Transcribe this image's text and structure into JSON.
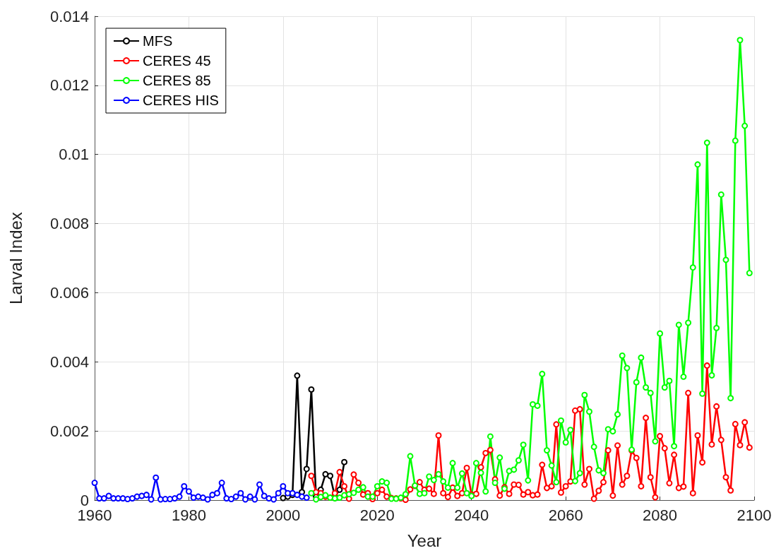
{
  "chart_data": {
    "type": "line",
    "xlabel": "Year",
    "ylabel": "Larval Index",
    "xlim": [
      1960,
      2100
    ],
    "xticks": [
      1960,
      1980,
      2000,
      2020,
      2040,
      2060,
      2080,
      2100
    ],
    "ylim": [
      0,
      0.014
    ],
    "yticks": [
      0,
      0.002,
      0.004,
      0.006,
      0.008,
      0.01,
      0.012,
      0.014
    ],
    "grid": true,
    "legend": "top left",
    "marker": "circle",
    "line_style": "solid",
    "series": [
      {
        "name": "MFS",
        "color": "#000000",
        "x": [
          2000,
          2001,
          2002,
          2003,
          2004,
          2005,
          2006,
          2007,
          2008,
          2009,
          2010,
          2011,
          2012,
          2013
        ],
        "values": [
          6e-05,
          0.0001,
          0.00015,
          0.0036,
          0.00023,
          0.0009,
          0.0032,
          0.0001,
          0.0003,
          0.00075,
          0.0007,
          0.0001,
          0.0003,
          0.0011
        ]
      },
      {
        "name": "CERES 45",
        "color": "#ff0000",
        "x": [
          2006,
          2007,
          2008,
          2009,
          2010,
          2011,
          2012,
          2013,
          2014,
          2015,
          2016,
          2017,
          2018,
          2019,
          2020,
          2021,
          2022,
          2023,
          2024,
          2025,
          2026,
          2027,
          2028,
          2029,
          2030,
          2031,
          2032,
          2033,
          2034,
          2035,
          2036,
          2037,
          2038,
          2039,
          2040,
          2041,
          2042,
          2043,
          2044,
          2045,
          2046,
          2047,
          2048,
          2049,
          2050,
          2051,
          2052,
          2053,
          2054,
          2055,
          2056,
          2057,
          2058,
          2059,
          2060,
          2061,
          2062,
          2063,
          2064,
          2065,
          2066,
          2067,
          2068,
          2069,
          2070,
          2071,
          2072,
          2073,
          2074,
          2075,
          2076,
          2077,
          2078,
          2079,
          2080,
          2081,
          2082,
          2083,
          2084,
          2085,
          2086,
          2087,
          2088,
          2089,
          2090,
          2091,
          2092,
          2093,
          2094,
          2095,
          2096,
          2097,
          2098,
          2099
        ],
        "values": [
          0.0007,
          0.00023,
          0.0002,
          0.0001,
          7e-05,
          0.0002,
          0.00081,
          0.0004,
          4e-05,
          0.00074,
          0.0005,
          0.00016,
          0.0002,
          3e-05,
          0.0002,
          0.0003,
          0.0001,
          6e-05,
          5e-05,
          5e-05,
          1e-05,
          0.00031,
          0.00041,
          0.00052,
          0.0003,
          0.00033,
          0.00018,
          0.00187,
          0.0002,
          9e-05,
          0.00036,
          0.00012,
          0.0002,
          0.00093,
          0.00016,
          0.00018,
          0.00095,
          0.00136,
          0.00145,
          0.0006,
          0.00013,
          0.00037,
          0.00018,
          0.00045,
          0.00044,
          0.00016,
          0.00023,
          0.00014,
          0.00016,
          0.00102,
          0.00035,
          0.0004,
          0.00219,
          0.00022,
          0.0004,
          0.00054,
          0.00259,
          0.00263,
          0.00045,
          0.0009,
          4e-05,
          0.00027,
          0.00052,
          0.00144,
          0.00013,
          0.00158,
          0.00045,
          0.0007,
          0.00143,
          0.00122,
          0.0004,
          0.00238,
          0.00066,
          8e-05,
          0.00185,
          0.0015,
          0.00049,
          0.00131,
          0.00035,
          0.00039,
          0.0031,
          0.0002,
          0.00187,
          0.00109,
          0.00389,
          0.00161,
          0.00271,
          0.00174,
          0.00066,
          0.00028,
          0.0022,
          0.00159,
          0.00225,
          0.00152
        ]
      },
      {
        "name": "CERES 85",
        "color": "#00ff00",
        "x": [
          2006,
          2007,
          2008,
          2009,
          2010,
          2011,
          2012,
          2013,
          2014,
          2015,
          2016,
          2017,
          2018,
          2019,
          2020,
          2021,
          2022,
          2023,
          2024,
          2025,
          2026,
          2027,
          2028,
          2029,
          2030,
          2031,
          2032,
          2033,
          2034,
          2035,
          2036,
          2037,
          2038,
          2039,
          2040,
          2041,
          2042,
          2043,
          2044,
          2045,
          2046,
          2047,
          2048,
          2049,
          2050,
          2051,
          2052,
          2053,
          2054,
          2055,
          2056,
          2057,
          2058,
          2059,
          2060,
          2061,
          2062,
          2063,
          2064,
          2065,
          2066,
          2067,
          2068,
          2069,
          2070,
          2071,
          2072,
          2073,
          2074,
          2075,
          2076,
          2077,
          2078,
          2079,
          2080,
          2081,
          2082,
          2083,
          2084,
          2085,
          2086,
          2087,
          2088,
          2089,
          2090,
          2091,
          2092,
          2093,
          2094,
          2095,
          2096,
          2097,
          2098,
          2099
        ],
        "values": [
          0.0002,
          2e-05,
          9e-05,
          0.00014,
          7e-05,
          5e-05,
          7e-05,
          0.00014,
          0.00017,
          0.00021,
          0.0003,
          0.00037,
          0.0001,
          0.0001,
          0.0004,
          0.00054,
          0.0005,
          4e-05,
          4e-05,
          7e-05,
          0.00017,
          0.00127,
          0.00042,
          0.00018,
          0.0002,
          0.00068,
          0.00058,
          0.00075,
          0.00054,
          0.00036,
          0.00107,
          0.00036,
          0.00077,
          0.0002,
          0.00012,
          0.00107,
          0.00079,
          0.00025,
          0.00184,
          0.0005,
          0.00123,
          0.00033,
          0.00084,
          0.00088,
          0.00115,
          0.0016,
          0.00057,
          0.00277,
          0.00273,
          0.00365,
          0.00144,
          0.001,
          0.00052,
          0.0023,
          0.00167,
          0.00203,
          0.00055,
          0.00078,
          0.00304,
          0.00256,
          0.00154,
          0.00086,
          0.00078,
          0.00205,
          0.00199,
          0.00248,
          0.00418,
          0.00382,
          0.00146,
          0.00341,
          0.00412,
          0.00326,
          0.0031,
          0.0017,
          0.00482,
          0.00326,
          0.00345,
          0.00156,
          0.00507,
          0.00357,
          0.00513,
          0.00673,
          0.00971,
          0.00308,
          0.01034,
          0.00361,
          0.00498,
          0.00884,
          0.00695,
          0.00295,
          0.0104,
          0.01331,
          0.01083,
          0.00657
        ]
      },
      {
        "name": "CERES HIS",
        "color": "#0000ff",
        "x": [
          1960,
          1961,
          1962,
          1963,
          1964,
          1965,
          1966,
          1967,
          1968,
          1969,
          1970,
          1971,
          1972,
          1973,
          1974,
          1975,
          1976,
          1977,
          1978,
          1979,
          1980,
          1981,
          1982,
          1983,
          1984,
          1985,
          1986,
          1987,
          1988,
          1989,
          1990,
          1991,
          1992,
          1993,
          1994,
          1995,
          1996,
          1997,
          1998,
          1999,
          2000,
          2001,
          2002,
          2003,
          2004,
          2005
        ],
        "values": [
          0.0005,
          5e-05,
          5e-05,
          0.00012,
          5e-05,
          5e-05,
          5e-05,
          3e-05,
          5e-05,
          0.0001,
          0.00012,
          0.00015,
          2e-05,
          0.00065,
          2e-05,
          3e-05,
          3e-05,
          5e-05,
          0.0001,
          0.0004,
          0.00025,
          7e-05,
          0.0001,
          7e-05,
          2e-05,
          0.00015,
          0.0002,
          0.0005,
          5e-05,
          3e-05,
          0.0001,
          0.0002,
          2e-05,
          0.0001,
          2e-05,
          0.00045,
          0.00012,
          5e-05,
          2e-05,
          0.0002,
          0.0004,
          0.0002,
          0.0002,
          0.00015,
          0.0001,
          7e-05
        ]
      }
    ]
  }
}
